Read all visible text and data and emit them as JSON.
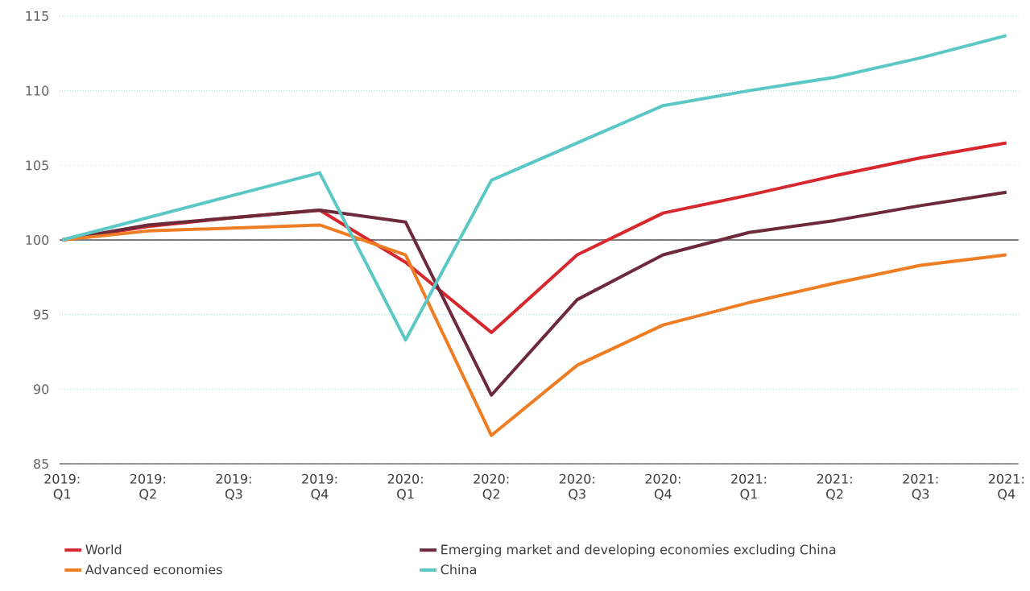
{
  "chart_data": {
    "type": "line",
    "categories": [
      "2019: Q1",
      "2019: Q2",
      "2019: Q3",
      "2019: Q4",
      "2020: Q1",
      "2020: Q2",
      "2020: Q3",
      "2020: Q4",
      "2021: Q1",
      "2021: Q2",
      "2021: Q3",
      "2021: Q4"
    ],
    "series": [
      {
        "name": "World",
        "color": "#d7282f",
        "values": [
          100,
          100.9,
          101.5,
          102.0,
          98.5,
          93.8,
          99.0,
          101.8,
          103.0,
          104.3,
          105.5,
          106.5
        ]
      },
      {
        "name": "Emerging market and developing economies excluding China",
        "color": "#6d2a3b",
        "values": [
          100,
          101.0,
          101.5,
          102.0,
          101.2,
          89.6,
          96.0,
          99.0,
          100.5,
          101.3,
          102.3,
          103.2
        ]
      },
      {
        "name": "Advanced economies",
        "color": "#ee7d24",
        "values": [
          100,
          100.6,
          100.8,
          101.0,
          99.0,
          86.9,
          91.6,
          94.3,
          95.8,
          97.1,
          98.3,
          99.0
        ]
      },
      {
        "name": "China",
        "color": "#5bc8c6",
        "values": [
          100,
          101.5,
          103.0,
          104.5,
          93.3,
          104.0,
          106.5,
          109.0,
          110.0,
          110.9,
          112.2,
          113.7
        ]
      }
    ],
    "ylim": [
      85,
      115
    ],
    "yticks": [
      85,
      90,
      95,
      100,
      105,
      110,
      115
    ],
    "grid": "y",
    "legend": "bottom",
    "marker": "none",
    "line_style": "solid",
    "ref_lines": [
      {
        "axis": "y",
        "value": 100,
        "color": "#555555"
      }
    ]
  }
}
